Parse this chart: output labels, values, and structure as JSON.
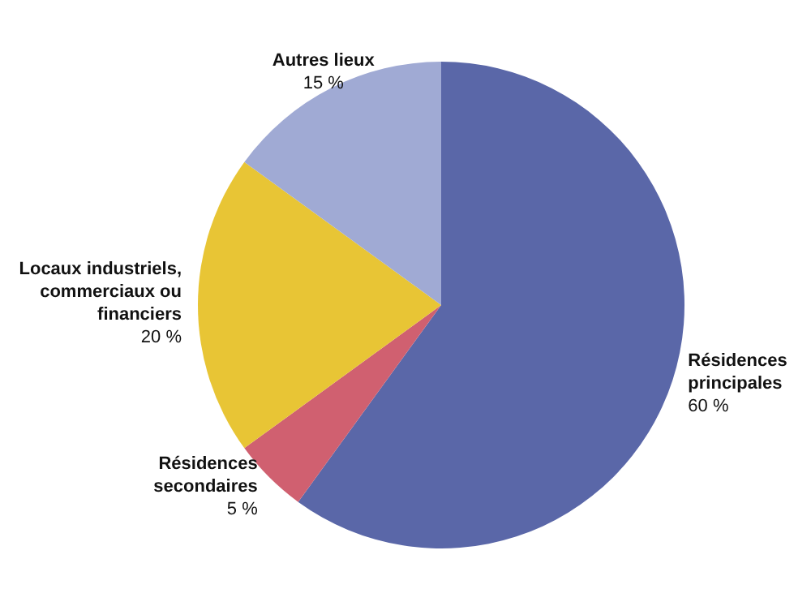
{
  "chart_data": {
    "type": "pie",
    "categories": [
      "Résidences principales",
      "Résidences secondaires",
      "Locaux industriels, commerciaux ou financiers",
      "Autres lieux"
    ],
    "values": [
      60,
      5,
      20,
      15
    ],
    "colors": [
      "#5a67a8",
      "#d06070",
      "#e8c535",
      "#a0aad4"
    ],
    "value_labels": [
      "60 %",
      "5 %",
      "20 %",
      "15 %"
    ]
  }
}
